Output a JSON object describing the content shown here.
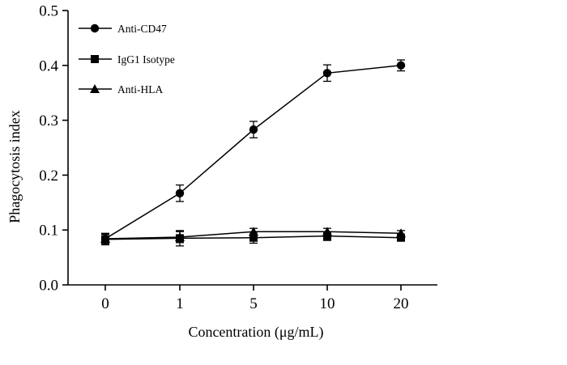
{
  "chart_data": {
    "type": "line",
    "title": "",
    "xlabel": "Concentration (μg/mL)",
    "ylabel": "Phagocytosis index",
    "categories": [
      "0",
      "1",
      "5",
      "10",
      "20"
    ],
    "ylim": [
      0,
      0.5
    ],
    "yticks": [
      "0.0",
      "0.1",
      "0.2",
      "0.3",
      "0.4",
      "0.5"
    ],
    "grid": false,
    "legend_position": "top-left",
    "series": [
      {
        "name": "Anti-CD47",
        "marker": "circle",
        "color": "#000000",
        "values": [
          0.084,
          0.167,
          0.283,
          0.386,
          0.4
        ],
        "errors": [
          0.01,
          0.015,
          0.015,
          0.015,
          0.01
        ]
      },
      {
        "name": "IgG1 Isotype",
        "marker": "square",
        "color": "#000000",
        "values": [
          0.083,
          0.085,
          0.086,
          0.089,
          0.086
        ],
        "errors": [
          0.01,
          0.014,
          0.01,
          0.008,
          0.006
        ]
      },
      {
        "name": "Anti-HLA",
        "marker": "triangle",
        "color": "#000000",
        "values": [
          0.084,
          0.087,
          0.097,
          0.097,
          0.094
        ],
        "errors": [
          0.008,
          0.01,
          0.006,
          0.006,
          0.005
        ]
      }
    ]
  }
}
